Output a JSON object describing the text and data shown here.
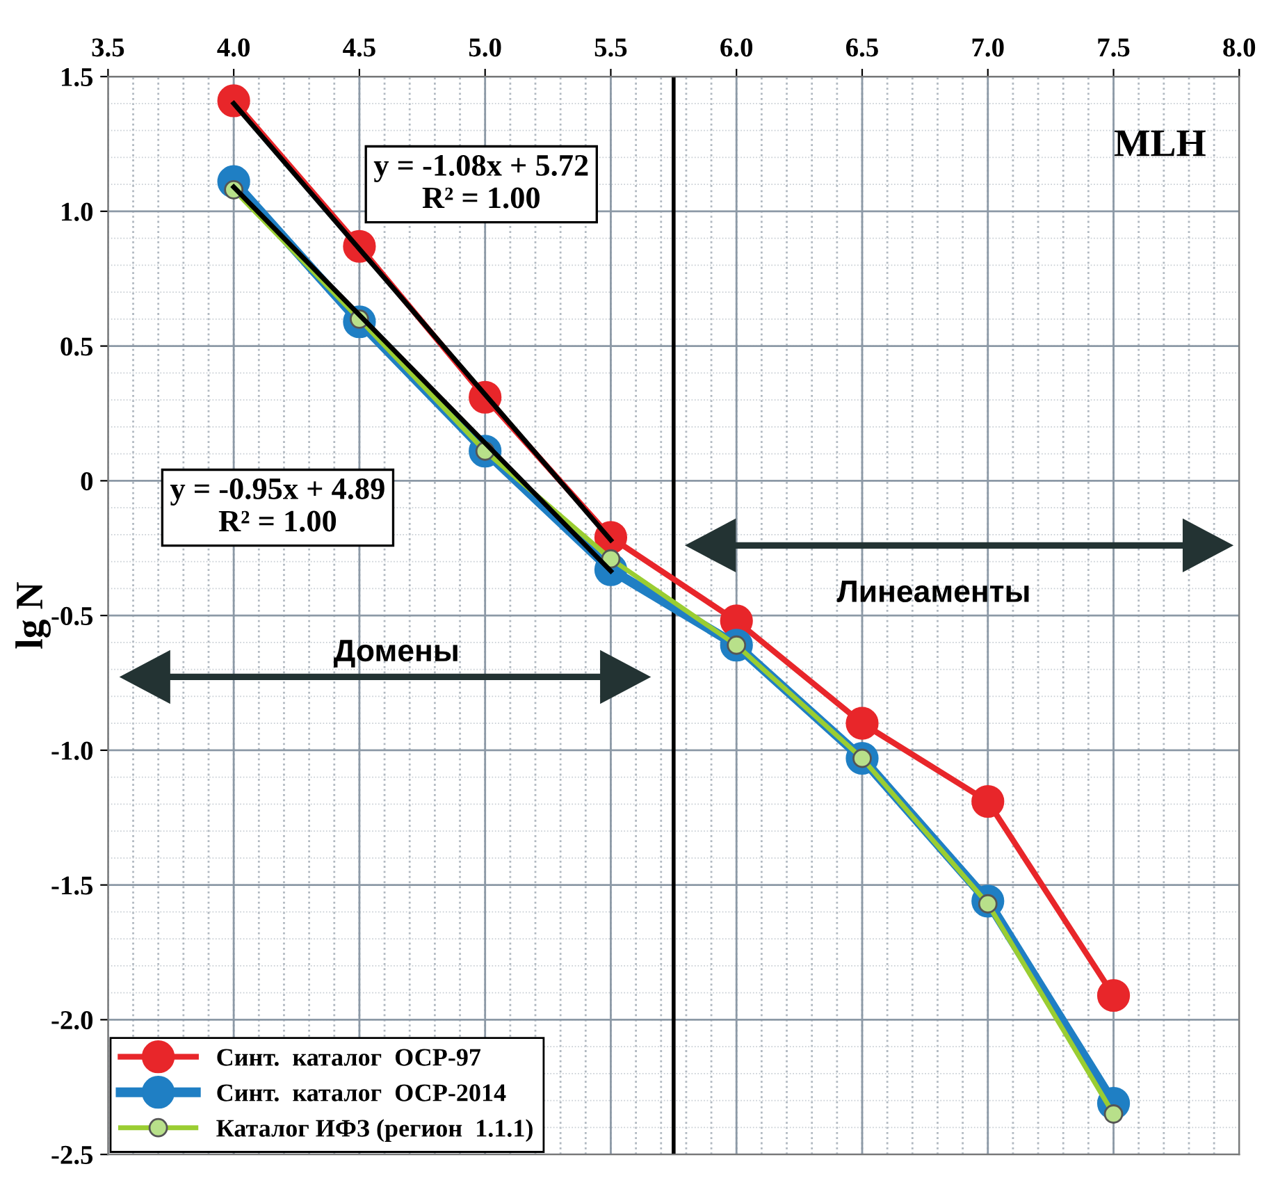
{
  "chart_data": {
    "type": "line",
    "ylabel": "lg N",
    "x": [
      4.0,
      4.5,
      5.0,
      5.5,
      6.0,
      6.5,
      7.0,
      7.5
    ],
    "series": [
      {
        "name": "Синт.  каталог  ОСР-97",
        "color": "#e8262a",
        "values": [
          1.41,
          0.87,
          0.31,
          -0.21,
          -0.52,
          -0.9,
          -1.19,
          -1.91
        ]
      },
      {
        "name": "Синт.  каталог  ОСР-2014",
        "color": "#1f7fc4",
        "values": [
          1.11,
          0.59,
          0.11,
          -0.33,
          -0.61,
          -1.03,
          -1.56,
          -2.31
        ]
      },
      {
        "name": "Каталог ИФЗ (регион  1.1.1)",
        "color": "#9acd32",
        "values": [
          1.08,
          0.6,
          0.11,
          -0.29,
          -0.61,
          -1.03,
          -1.57,
          -2.35
        ]
      },
      {
        "type": "line",
        "color": "#000000",
        "marker": "none",
        "values": [
          1.4,
          0.86,
          0.32,
          -0.22,
          null,
          null,
          null,
          null
        ]
      },
      {
        "type": "line",
        "color": "#000000",
        "marker": "none",
        "values": [
          1.09,
          0.615,
          0.14,
          -0.335,
          null,
          null,
          null,
          null
        ]
      }
    ],
    "xlim": [
      3.5,
      8.0
    ],
    "xticks": [
      3.5,
      {
        "value": 4,
        "label": "4.0"
      },
      4.5,
      {
        "value": 5,
        "label": "5.0"
      },
      5.5,
      {
        "value": 6,
        "label": "6.0"
      },
      6.5,
      {
        "value": 7,
        "label": "7.0"
      },
      7.5,
      {
        "value": 8,
        "label": "8.0"
      }
    ],
    "ylim": [
      -2.5,
      1.5
    ],
    "yticks": [
      {
        "value": 1.5,
        "label": "1.5"
      },
      {
        "value": 1.0,
        "label": "1.0"
      },
      {
        "value": 0.5,
        "label": "0.5"
      },
      0,
      {
        "value": -0.5,
        "label": "-0.5"
      },
      {
        "value": -1.0,
        "label": "-1.0"
      },
      {
        "value": -1.5,
        "label": "-1.5"
      },
      {
        "value": -2.0,
        "label": "-2.0"
      },
      {
        "value": -2.5,
        "label": "-2.5"
      }
    ],
    "ref_lines": [
      {
        "axis": "x",
        "value": 5.75,
        "color": "#000000"
      }
    ],
    "annotations": [
      "y = -1.08x + 5.72\nR² = 1.00",
      "y = -0.95x + 4.89\nR² = 1.00",
      "MLH",
      "Домены",
      "Линеаменты"
    ],
    "grid": true,
    "legend": "bottom left",
    "marker": "circle",
    "line_style": "solid"
  }
}
